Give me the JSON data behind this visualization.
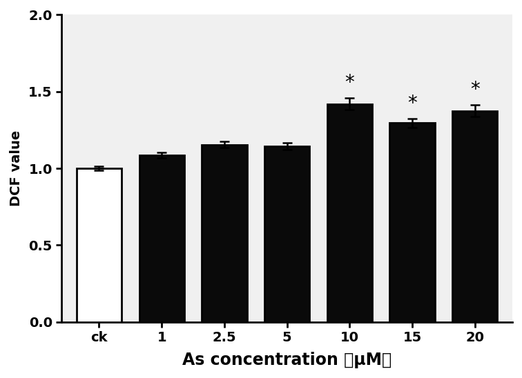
{
  "categories": [
    "ck",
    "1",
    "2.5",
    "5",
    "10",
    "15",
    "20"
  ],
  "values": [
    1.0,
    1.085,
    1.155,
    1.145,
    1.42,
    1.295,
    1.375
  ],
  "errors": [
    0.012,
    0.018,
    0.022,
    0.022,
    0.038,
    0.03,
    0.038
  ],
  "bar_colors": [
    "#ffffff",
    "#0a0a0a",
    "#0a0a0a",
    "#0a0a0a",
    "#0a0a0a",
    "#0a0a0a",
    "#0a0a0a"
  ],
  "bar_edgecolors": [
    "#000000",
    "#000000",
    "#000000",
    "#000000",
    "#000000",
    "#000000",
    "#000000"
  ],
  "significance": [
    false,
    false,
    false,
    false,
    true,
    true,
    true
  ],
  "ylabel": "DCF value",
  "xlabel": "As concentration （μM）",
  "ylim": [
    0.0,
    2.0
  ],
  "yticks": [
    0.0,
    0.5,
    1.0,
    1.5,
    2.0
  ],
  "background_color": "#ffffff",
  "plot_bg_color": "#f0f0f0",
  "bar_width": 0.72,
  "xlabel_fontsize": 17,
  "ylabel_fontsize": 14,
  "tick_fontsize": 14,
  "star_fontsize": 20,
  "linewidth": 2.0
}
